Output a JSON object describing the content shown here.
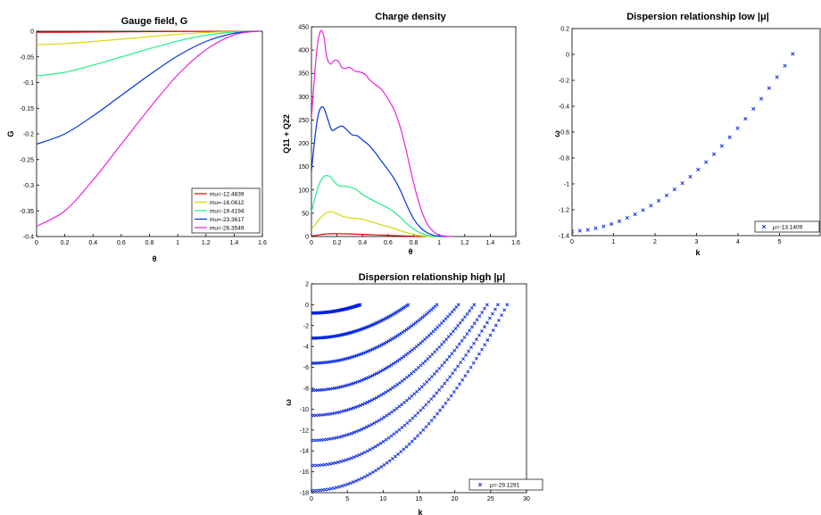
{
  "chart_data": [
    {
      "id": "gauge",
      "type": "line",
      "title": "Gauge field, G",
      "xlabel": "θ",
      "ylabel": "G",
      "xlim": [
        0,
        1.6
      ],
      "ylim": [
        -0.4,
        0
      ],
      "xticks": [
        "0",
        "0.2",
        "0.4",
        "0.6",
        "0.8",
        "1",
        "1.2",
        "1.4",
        "1.6"
      ],
      "yticks": [
        "0",
        "-0.05",
        "-0.1",
        "-0.15",
        "-0.2",
        "-0.25",
        "-0.3",
        "-0.35",
        "-0.4"
      ],
      "legend_position": "bottom-right",
      "series": [
        {
          "name": "mu=-12.4839",
          "color": "#dd0000",
          "x": [
            0,
            0.2,
            0.4,
            0.6,
            0.8,
            1.0,
            1.2,
            1.4,
            1.571
          ],
          "y": [
            -0.002,
            -0.0019,
            -0.0016,
            -0.0012,
            -0.0008,
            -0.0004,
            -0.0002,
            -5e-05,
            0
          ]
        },
        {
          "name": "mu=-16.0612",
          "color": "#d8d800",
          "x": [
            0,
            0.2,
            0.4,
            0.6,
            0.8,
            1.0,
            1.2,
            1.4,
            1.571
          ],
          "y": [
            -0.026,
            -0.024,
            -0.02,
            -0.0155,
            -0.0105,
            -0.006,
            -0.0025,
            -0.0005,
            0
          ]
        },
        {
          "name": "mu=-19.4194",
          "color": "#22ee88",
          "x": [
            0,
            0.2,
            0.4,
            0.6,
            0.8,
            1.0,
            1.2,
            1.4,
            1.571
          ],
          "y": [
            -0.087,
            -0.08,
            -0.066,
            -0.05,
            -0.034,
            -0.019,
            -0.008,
            -0.0015,
            0
          ]
        },
        {
          "name": "mu=-23.3617",
          "color": "#0033dd",
          "x": [
            0,
            0.2,
            0.4,
            0.6,
            0.8,
            1.0,
            1.2,
            1.4,
            1.571
          ],
          "y": [
            -0.22,
            -0.2,
            -0.165,
            -0.125,
            -0.085,
            -0.048,
            -0.02,
            -0.004,
            0
          ]
        },
        {
          "name": "mu=-26.3549",
          "color": "#ee22dd",
          "x": [
            0,
            0.2,
            0.4,
            0.6,
            0.8,
            1.0,
            1.2,
            1.4,
            1.571
          ],
          "y": [
            -0.38,
            -0.35,
            -0.29,
            -0.22,
            -0.15,
            -0.085,
            -0.036,
            -0.007,
            0
          ]
        }
      ]
    },
    {
      "id": "charge",
      "type": "line",
      "title": "Charge density",
      "xlabel": "θ",
      "ylabel": "Q11 + Q22",
      "xlim": [
        0,
        1.6
      ],
      "ylim": [
        0,
        450
      ],
      "xticks": [
        "0",
        "0.2",
        "0.4",
        "0.6",
        "0.8",
        "1",
        "1.2",
        "1.4",
        "1.6"
      ],
      "yticks": [
        "0",
        "50",
        "100",
        "150",
        "200",
        "250",
        "300",
        "350",
        "400",
        "450"
      ],
      "series": [
        {
          "color": "#dd0000",
          "x": [
            0,
            0.05,
            0.1,
            0.15,
            0.2,
            0.3,
            0.4,
            0.5,
            0.6,
            0.7,
            0.8,
            0.85
          ],
          "y": [
            1,
            3,
            5,
            6,
            6,
            5.5,
            4.5,
            3.5,
            2.5,
            1.5,
            0.5,
            0
          ]
        },
        {
          "color": "#d8d800",
          "x": [
            0,
            0.04,
            0.08,
            0.12,
            0.16,
            0.2,
            0.25,
            0.3,
            0.35,
            0.4,
            0.45,
            0.5,
            0.55,
            0.6,
            0.65,
            0.7,
            0.75,
            0.8,
            0.85,
            0.9,
            0.95
          ],
          "y": [
            15,
            30,
            43,
            51,
            53,
            49,
            43,
            40,
            39,
            37,
            33,
            29,
            25,
            21,
            17,
            12,
            8,
            5,
            2,
            0.5,
            0
          ]
        },
        {
          "color": "#22ee88",
          "x": [
            0,
            0.03,
            0.06,
            0.09,
            0.12,
            0.15,
            0.18,
            0.22,
            0.26,
            0.3,
            0.35,
            0.4,
            0.45,
            0.5,
            0.55,
            0.6,
            0.65,
            0.7,
            0.75,
            0.8,
            0.85,
            0.9,
            0.95,
            1.0
          ],
          "y": [
            52,
            85,
            112,
            127,
            131,
            127,
            117,
            108,
            108,
            106,
            101,
            90,
            82,
            75,
            68,
            61,
            52,
            40,
            27,
            16,
            8,
            3,
            1,
            0
          ]
        },
        {
          "color": "#0033dd",
          "x": [
            0,
            0.02,
            0.04,
            0.06,
            0.08,
            0.1,
            0.13,
            0.16,
            0.2,
            0.24,
            0.28,
            0.32,
            0.36,
            0.4,
            0.45,
            0.5,
            0.55,
            0.6,
            0.65,
            0.7,
            0.75,
            0.8,
            0.85,
            0.9,
            0.95,
            1.0,
            1.05
          ],
          "y": [
            140,
            195,
            240,
            268,
            278,
            274,
            250,
            228,
            233,
            237,
            228,
            218,
            216,
            207,
            196,
            180,
            161,
            143,
            123,
            97,
            65,
            38,
            20,
            9,
            3,
            1,
            0
          ]
        },
        {
          "color": "#ee22dd",
          "x": [
            0,
            0.02,
            0.04,
            0.06,
            0.08,
            0.1,
            0.12,
            0.15,
            0.18,
            0.21,
            0.24,
            0.27,
            0.3,
            0.34,
            0.38,
            0.42,
            0.46,
            0.5,
            0.55,
            0.6,
            0.65,
            0.7,
            0.75,
            0.8,
            0.85,
            0.9,
            0.95,
            1.0,
            1.05,
            1.1
          ],
          "y": [
            255,
            330,
            395,
            432,
            442,
            425,
            385,
            370,
            378,
            376,
            362,
            361,
            363,
            355,
            353,
            348,
            335,
            326,
            315,
            295,
            270,
            230,
            175,
            115,
            65,
            30,
            12,
            3,
            1,
            0
          ]
        }
      ]
    },
    {
      "id": "disp_low",
      "type": "scatter",
      "title": "Dispersion relationship low |μ|",
      "xlabel": "k",
      "ylabel": "ω",
      "xlim": [
        0,
        6
      ],
      "ylim": [
        -1.4,
        0.2
      ],
      "xticks": [
        "0",
        "1",
        "2",
        "3",
        "4",
        "5"
      ],
      "yticks": [
        "0.2",
        "0",
        "-0.2",
        "-0.4",
        "-0.6",
        "-0.8",
        "-1",
        "-1.2",
        "-1.4"
      ],
      "marker": "x",
      "color": "#0022dd",
      "legend_position": "bottom-right",
      "series": [
        {
          "name": "μ=-13.1409",
          "x": [
            0,
            0.19,
            0.38,
            0.57,
            0.76,
            0.95,
            1.14,
            1.33,
            1.52,
            1.71,
            1.9,
            2.09,
            2.28,
            2.47,
            2.66,
            2.85,
            3.04,
            3.23,
            3.42,
            3.61,
            3.8,
            3.99,
            4.18,
            4.37,
            4.56,
            4.75,
            4.94,
            5.13,
            5.32
          ],
          "y": [
            -1.368,
            -1.362,
            -1.355,
            -1.343,
            -1.328,
            -1.31,
            -1.289,
            -1.263,
            -1.235,
            -1.203,
            -1.168,
            -1.13,
            -1.089,
            -1.043,
            -0.995,
            -0.944,
            -0.89,
            -0.832,
            -0.771,
            -0.707,
            -0.64,
            -0.57,
            -0.497,
            -0.421,
            -0.342,
            -0.26,
            -0.175,
            -0.087,
            0.004
          ]
        }
      ]
    },
    {
      "id": "disp_high",
      "type": "scatter",
      "title": "Dispersion relationship high |μ|",
      "xlabel": "k",
      "ylabel": "ω",
      "xlim": [
        0,
        30
      ],
      "ylim": [
        -18,
        2
      ],
      "xticks": [
        "0",
        "5",
        "10",
        "15",
        "20",
        "25",
        "30"
      ],
      "yticks": [
        "2",
        "0",
        "-2",
        "-4",
        "-6",
        "-8",
        "-10",
        "-12",
        "-14",
        "-16",
        "-18"
      ],
      "marker": "x",
      "color": "#0022dd",
      "legend_position": "bottom-right",
      "legend": "μ=-29.1291",
      "branches": [
        {
          "y0": -0.8,
          "kmax": 6.8
        },
        {
          "y0": -3.2,
          "kmax": 13.5
        },
        {
          "y0": -5.6,
          "kmax": 17.5
        },
        {
          "y0": -8.2,
          "kmax": 20.5
        },
        {
          "y0": -10.6,
          "kmax": 22.7
        },
        {
          "y0": -13.0,
          "kmax": 24.5
        },
        {
          "y0": -15.4,
          "kmax": 26.0
        },
        {
          "y0": -17.8,
          "kmax": 27.3
        }
      ]
    }
  ]
}
